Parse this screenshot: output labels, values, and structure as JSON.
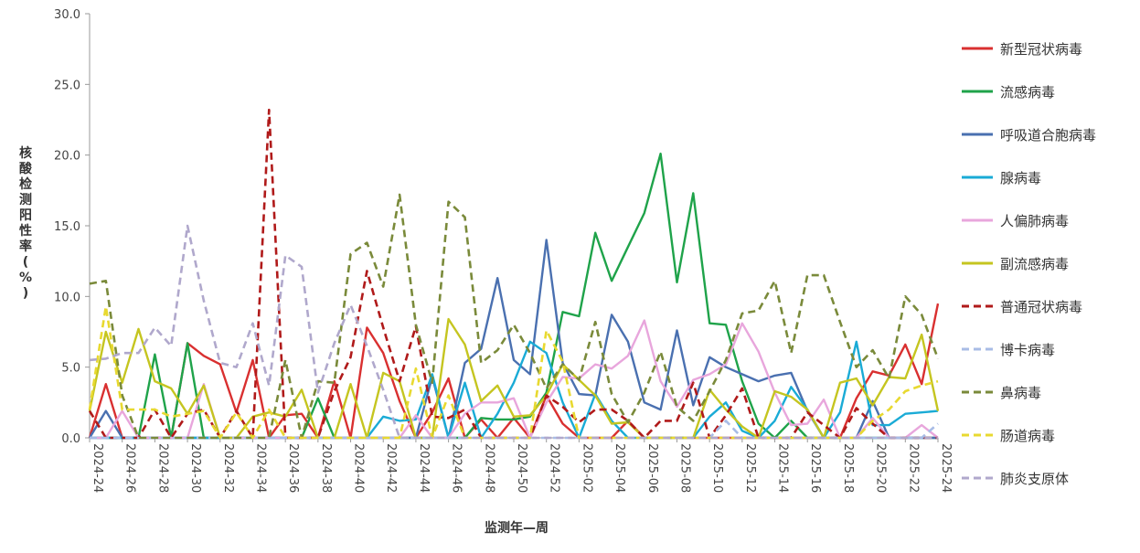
{
  "chart_data": {
    "type": "line",
    "xlabel": "监测年—周",
    "ylabel": "核酸检测阳性率(%)",
    "ylim": [
      0,
      30
    ],
    "yticks": [
      "0.0",
      "5.0",
      "10.0",
      "15.0",
      "20.0",
      "25.0",
      "30.0"
    ],
    "grid": false,
    "legend_position": "right",
    "x_tick_labels": [
      "2024-24",
      "2024-26",
      "2024-28",
      "2024-30",
      "2024-32",
      "2024-34",
      "2024-36",
      "2024-38",
      "2024-40",
      "2024-42",
      "2024-44",
      "2024-46",
      "2024-48",
      "2024-50",
      "2024-52",
      "2025-02",
      "2025-04",
      "2025-06",
      "2025-08",
      "2025-10",
      "2025-12",
      "2025-14",
      "2025-16",
      "2025-18",
      "2025-20",
      "2025-22",
      "2025-24"
    ],
    "x": [
      "2024-24",
      "2024-25",
      "2024-26",
      "2024-27",
      "2024-28",
      "2024-29",
      "2024-30",
      "2024-31",
      "2024-32",
      "2024-33",
      "2024-34",
      "2024-35",
      "2024-36",
      "2024-37",
      "2024-38",
      "2024-39",
      "2024-40",
      "2024-41",
      "2024-42",
      "2024-43",
      "2024-44",
      "2024-45",
      "2024-46",
      "2024-47",
      "2024-48",
      "2024-49",
      "2024-50",
      "2024-51",
      "2024-52",
      "2025-01",
      "2025-02",
      "2025-03",
      "2025-04",
      "2025-05",
      "2025-06",
      "2025-07",
      "2025-08",
      "2025-09",
      "2025-10",
      "2025-11",
      "2025-12",
      "2025-13",
      "2025-14",
      "2025-15",
      "2025-16",
      "2025-17",
      "2025-18",
      "2025-19",
      "2025-20",
      "2025-21",
      "2025-22",
      "2025-23",
      "2025-24"
    ],
    "series": [
      {
        "name": "新型冠状病毒",
        "color": "#d93030",
        "dash": false,
        "values": [
          0.0,
          3.8,
          0.0,
          0.0,
          0.0,
          0.0,
          6.7,
          5.8,
          5.2,
          1.8,
          5.5,
          0.0,
          1.6,
          1.7,
          0.0,
          4.0,
          0.0,
          7.8,
          6.0,
          2.6,
          0.0,
          1.8,
          4.2,
          0.0,
          1.3,
          0.0,
          1.4,
          0.0,
          3.0,
          1.0,
          0.0,
          0.0,
          0.0,
          1.2,
          0.0,
          0.0,
          0.0,
          0.0,
          0.0,
          0.0,
          0.0,
          0.0,
          0.0,
          0.0,
          0.0,
          0.0,
          0.0,
          2.8,
          4.7,
          4.4,
          6.6,
          3.8,
          9.5
        ]
      },
      {
        "name": "流感病毒",
        "color": "#1fa34a",
        "dash": false,
        "values": [
          0.0,
          0.0,
          0.0,
          0.0,
          5.9,
          0.0,
          6.7,
          0.0,
          0.0,
          0.0,
          0.0,
          0.0,
          0.0,
          0.0,
          2.8,
          0.0,
          0.0,
          0.0,
          0.0,
          0.0,
          0.0,
          0.0,
          0.0,
          0.0,
          1.4,
          1.3,
          1.3,
          1.5,
          3.2,
          8.9,
          8.6,
          14.5,
          11.1,
          13.5,
          15.9,
          20.1,
          11.0,
          17.3,
          8.1,
          8.0,
          4.0,
          1.0,
          0.0,
          1.2,
          0.0,
          0.0,
          0.0,
          0.0,
          0.0,
          0.0,
          0.0,
          0.0,
          0.0
        ]
      },
      {
        "name": "呼吸道合胞病毒",
        "color": "#4a70b0",
        "dash": false,
        "values": [
          0.0,
          1.9,
          0.0,
          0.0,
          0.0,
          0.0,
          0.0,
          0.0,
          0.0,
          0.0,
          0.0,
          0.0,
          0.0,
          0.0,
          0.0,
          0.0,
          0.0,
          0.0,
          0.0,
          0.0,
          0.0,
          4.3,
          0.0,
          5.3,
          6.3,
          11.3,
          5.5,
          4.5,
          14.0,
          5.3,
          3.1,
          3.0,
          8.7,
          6.8,
          2.5,
          2.0,
          7.6,
          2.3,
          5.7,
          5.0,
          4.5,
          4.0,
          4.4,
          4.6,
          1.9,
          0.0,
          0.0,
          0.0,
          2.6,
          0.0,
          0.0,
          0.0,
          0.0
        ]
      },
      {
        "name": "腺病毒",
        "color": "#1aabd6",
        "dash": false,
        "values": [
          0.0,
          0.0,
          0.0,
          0.0,
          0.0,
          0.0,
          0.0,
          0.0,
          0.0,
          0.0,
          0.0,
          0.0,
          0.0,
          0.0,
          0.0,
          0.0,
          0.0,
          0.0,
          1.5,
          1.2,
          1.3,
          4.5,
          0.0,
          3.9,
          0.0,
          1.7,
          3.9,
          6.8,
          6.0,
          2.5,
          0.0,
          3.1,
          1.2,
          0.0,
          0.0,
          0.0,
          0.0,
          0.0,
          1.5,
          2.5,
          0.5,
          0.0,
          1.2,
          3.6,
          2.0,
          0.0,
          1.8,
          6.8,
          0.9,
          0.9,
          1.7,
          1.8,
          1.9
        ]
      },
      {
        "name": "人偏肺病毒",
        "color": "#e8a6dc",
        "dash": false,
        "values": [
          0.0,
          0.0,
          1.9,
          0.0,
          0.0,
          0.0,
          0.0,
          3.8,
          0.0,
          0.0,
          0.0,
          0.0,
          0.0,
          0.0,
          0.0,
          0.0,
          0.0,
          0.0,
          0.0,
          0.0,
          1.6,
          0.0,
          0.0,
          1.7,
          2.5,
          2.5,
          2.8,
          0.0,
          2.5,
          4.3,
          4.2,
          5.2,
          4.9,
          5.8,
          8.3,
          4.0,
          2.2,
          4.1,
          4.5,
          5.2,
          8.1,
          6.1,
          3.2,
          0.9,
          1.0,
          2.7,
          0.0,
          0.0,
          1.4,
          0.0,
          0.0,
          0.9,
          0.0
        ]
      },
      {
        "name": "副流感病毒",
        "color": "#c5c520",
        "dash": false,
        "values": [
          1.9,
          7.5,
          3.9,
          7.7,
          4.0,
          3.5,
          1.7,
          3.7,
          0.0,
          0.0,
          1.5,
          1.8,
          1.5,
          3.4,
          0.0,
          0.0,
          3.8,
          0.0,
          4.6,
          4.0,
          0.0,
          0.0,
          8.4,
          6.6,
          2.6,
          3.7,
          1.5,
          1.6,
          3.0,
          5.2,
          4.1,
          3.0,
          1.0,
          1.1,
          0.0,
          0.0,
          0.0,
          0.0,
          3.4,
          2.0,
          0.8,
          0.0,
          3.3,
          2.9,
          2.0,
          0.0,
          3.9,
          4.2,
          2.3,
          4.3,
          4.2,
          7.3,
          1.9
        ]
      },
      {
        "name": "普通冠状病毒",
        "color": "#b01a1a",
        "dash": true,
        "values": [
          1.9,
          0.0,
          0.0,
          0.0,
          2.0,
          0.0,
          1.7,
          2.0,
          0.0,
          1.9,
          0.0,
          23.2,
          0.0,
          0.0,
          0.0,
          3.3,
          5.7,
          11.8,
          7.8,
          4.0,
          7.9,
          1.5,
          1.4,
          2.0,
          0.0,
          0.0,
          0.0,
          0.0,
          3.0,
          2.2,
          1.1,
          2.0,
          2.0,
          1.2,
          0.0,
          1.2,
          1.2,
          3.9,
          0.0,
          1.6,
          3.5,
          0.0,
          0.0,
          0.0,
          1.8,
          0.9,
          0.0,
          2.1,
          1.0,
          0.0,
          0.0,
          0.0,
          0.0
        ]
      },
      {
        "name": "博卡病毒",
        "color": "#a8bce6",
        "dash": true,
        "values": [
          0.0,
          0.0,
          0.0,
          0.0,
          0.0,
          0.0,
          0.0,
          0.0,
          0.0,
          0.0,
          0.0,
          0.0,
          0.0,
          0.0,
          0.0,
          0.0,
          0.0,
          0.0,
          0.0,
          0.0,
          0.0,
          0.0,
          0.0,
          0.0,
          0.0,
          0.0,
          0.0,
          0.0,
          0.0,
          0.0,
          0.0,
          0.0,
          0.0,
          0.0,
          0.0,
          0.0,
          0.0,
          0.0,
          0.0,
          1.2,
          0.0,
          0.0,
          0.0,
          0.0,
          0.0,
          0.0,
          0.0,
          0.0,
          0.0,
          0.0,
          0.0,
          0.0,
          1.0
        ]
      },
      {
        "name": "鼻病毒",
        "color": "#7a8a3a",
        "dash": true,
        "values": [
          10.9,
          11.1,
          3.0,
          0.0,
          0.0,
          0.0,
          0.0,
          0.0,
          0.0,
          0.0,
          0.0,
          0.0,
          5.5,
          0.0,
          4.0,
          3.9,
          13.0,
          13.8,
          10.7,
          17.2,
          8.0,
          3.9,
          16.7,
          15.6,
          5.3,
          6.2,
          8.0,
          6.0,
          3.5,
          5.2,
          4.1,
          8.2,
          3.1,
          1.1,
          3.2,
          6.1,
          2.2,
          1.2,
          3.3,
          5.5,
          8.8,
          9.0,
          11.1,
          6.0,
          11.5,
          11.5,
          8.2,
          5.0,
          6.2,
          4.2,
          10.0,
          8.7,
          5.6
        ]
      },
      {
        "name": "肠道病毒",
        "color": "#e8d930",
        "dash": true,
        "values": [
          2.0,
          9.3,
          2.0,
          2.0,
          2.0,
          1.5,
          1.7,
          1.9,
          0.0,
          1.8,
          0.0,
          2.0,
          0.0,
          0.0,
          0.0,
          0.0,
          0.0,
          0.0,
          0.0,
          0.0,
          4.9,
          0.0,
          3.0,
          0.0,
          0.0,
          0.0,
          0.0,
          0.0,
          7.6,
          5.4,
          0.0,
          0.0,
          0.0,
          0.0,
          0.0,
          0.0,
          0.0,
          0.0,
          0.0,
          0.0,
          0.0,
          0.0,
          0.0,
          0.0,
          0.0,
          0.0,
          0.0,
          0.0,
          1.2,
          2.0,
          3.3,
          3.7,
          4.0
        ]
      },
      {
        "name": "肺炎支原体",
        "color": "#b0a8cc",
        "dash": true,
        "values": [
          5.5,
          5.6,
          6.0,
          6.0,
          7.8,
          6.5,
          15.0,
          9.7,
          5.3,
          5.0,
          8.1,
          3.7,
          12.9,
          12.1,
          3.2,
          6.7,
          9.4,
          6.5,
          3.4,
          0.0,
          0.0,
          0.0,
          0.0,
          0.0,
          0.0,
          0.0,
          0.0,
          0.0,
          0.0,
          0.0,
          0.0,
          0.0,
          0.0,
          0.0,
          0.0,
          0.0,
          0.0,
          0.0,
          0.0,
          0.0,
          0.0,
          0.0,
          0.0,
          0.0,
          0.0,
          0.0,
          0.0,
          0.0,
          0.0,
          0.0,
          0.0,
          0.0,
          0.0
        ]
      }
    ]
  }
}
